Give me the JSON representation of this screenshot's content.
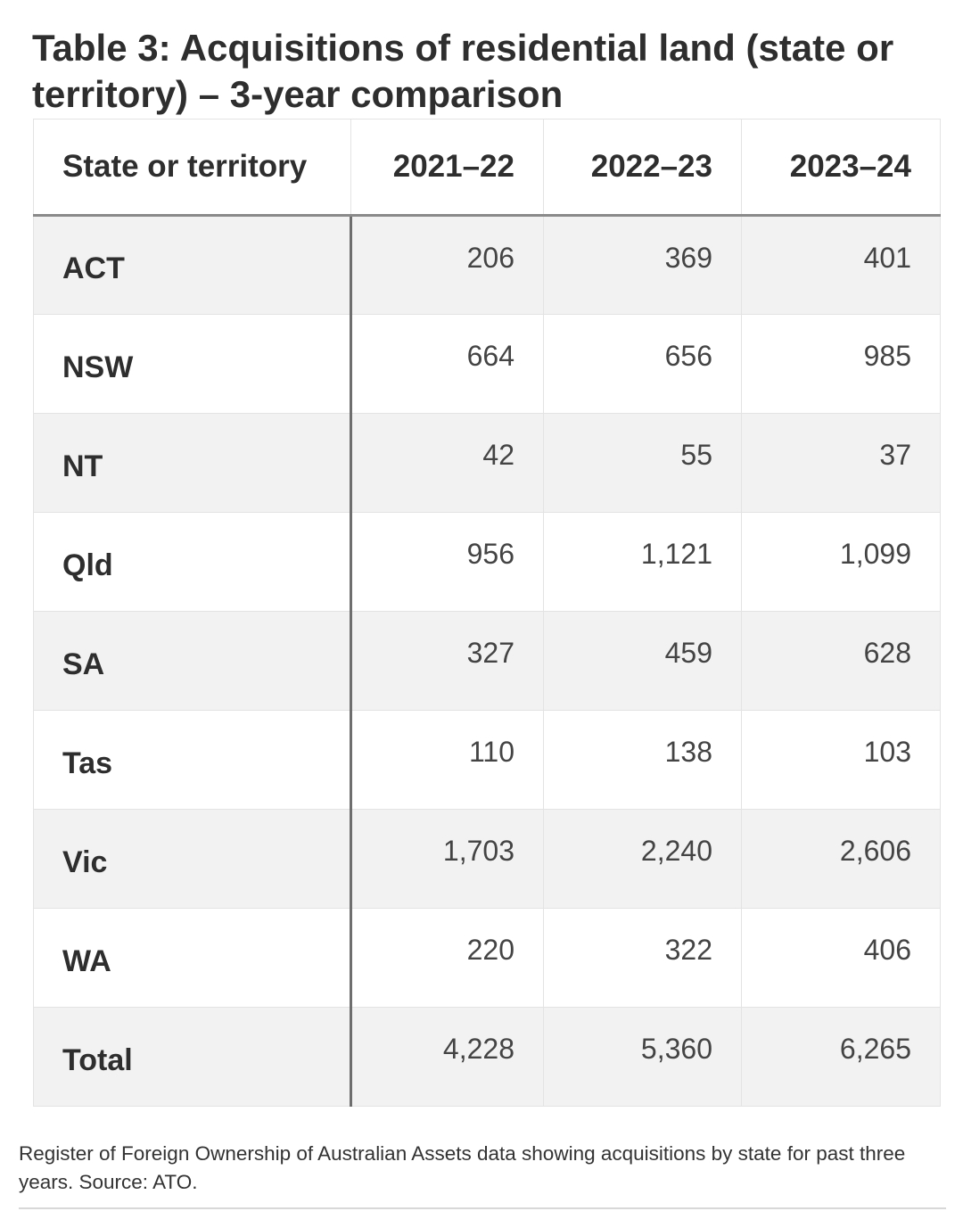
{
  "title": "Table 3: Acquisitions of residential land (state or territory) – 3-year comparison",
  "table": {
    "headers": [
      "State or territory",
      "2021–22",
      "2022–23",
      "2023–24"
    ],
    "rows": [
      [
        "ACT",
        "206",
        "369",
        "401"
      ],
      [
        "NSW",
        "664",
        "656",
        "985"
      ],
      [
        "NT",
        "42",
        "55",
        "37"
      ],
      [
        "Qld",
        "956",
        "1,121",
        "1,099"
      ],
      [
        "SA",
        "327",
        "459",
        "628"
      ],
      [
        "Tas",
        "110",
        "138",
        "103"
      ],
      [
        "Vic",
        "1,703",
        "2,240",
        "2,606"
      ],
      [
        "WA",
        "220",
        "322",
        "406"
      ],
      [
        "Total",
        "4,228",
        "5,360",
        "6,265"
      ]
    ]
  },
  "caption": "Register of Foreign Ownership of Australian Assets data showing acquisitions by state for past three years. Source: ATO.",
  "colors": {
    "row_shade": "#f2f2f2",
    "row_plain": "#ffffff",
    "grid": "#e3e3e3",
    "header_rule": "#8a8a8a",
    "first_col_rule": "#6e6e6e"
  }
}
